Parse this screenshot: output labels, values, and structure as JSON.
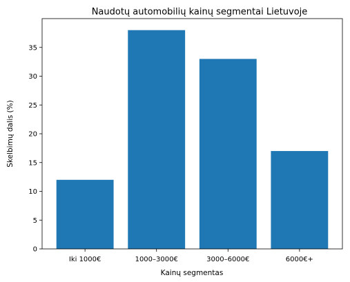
{
  "chart_data": {
    "type": "bar",
    "title": "Naudotų automobilių kainų segmentai Lietuvoje",
    "xlabel": "Kainų segmentas",
    "ylabel": "Skelbimų dalis (%)",
    "categories": [
      "Iki 1000€",
      "1000–3000€",
      "3000–6000€",
      "6000€+"
    ],
    "values": [
      12,
      38,
      33,
      17
    ],
    "ylim": [
      0,
      40
    ],
    "yticks": [
      0,
      5,
      10,
      15,
      20,
      25,
      30,
      35
    ],
    "bar_color": "#1f77b4",
    "grid": false,
    "legend": "none"
  }
}
